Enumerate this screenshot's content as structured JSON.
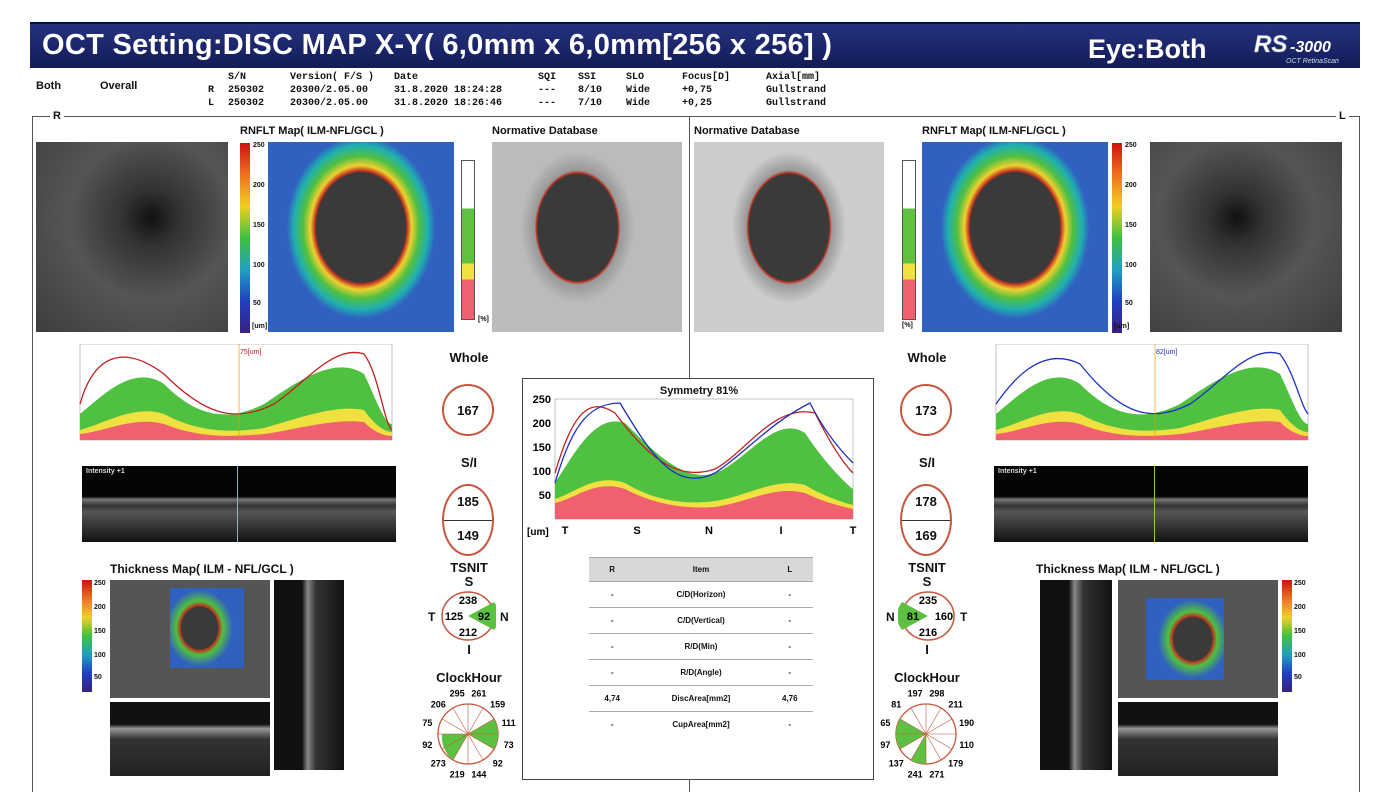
{
  "header": {
    "title": "OCT Setting:DISC MAP X-Y( 6,0mm x 6,0mm[256 x 256] )",
    "eye": "Eye:Both",
    "logo_main": "RS-3000",
    "logo_sub": "OCT RetinaScan",
    "mode_left": "Both",
    "mode_right": "Overall"
  },
  "scan_table": {
    "columns": [
      "S/N",
      "Version( F/S )",
      "Date",
      "SQI",
      "SSI",
      "SLO",
      "Focus[D]",
      "Axial[mm]"
    ],
    "rows": [
      {
        "eye": "R",
        "sn": "250302",
        "version": "20300/2.05.00",
        "date": "31.8.2020 18:24:28",
        "sqi": "---",
        "ssi": "8/10",
        "slo": "Wide",
        "focus": "+0,75",
        "axial": "Gullstrand"
      },
      {
        "eye": "L",
        "sn": "250302",
        "version": "20300/2.05.00",
        "date": "31.8.2020 18:26:46",
        "sqi": "---",
        "ssi": "7/10",
        "slo": "Wide",
        "focus": "+0,25",
        "axial": "Gullstrand"
      }
    ]
  },
  "sides": {
    "right": "R",
    "left": "L"
  },
  "labels": {
    "rnflt_map": "RNFLT Map( ILM-NFL/GCL )",
    "normative": "Normative Database",
    "thickness_map": "Thickness Map( ILM - NFL/GCL )",
    "whole": "Whole",
    "si": "S/I",
    "tsnit": "TSNIT",
    "clockhour": "ClockHour",
    "um": "[um]",
    "pct": "[%]"
  },
  "color_scale": [
    "250",
    "200",
    "150",
    "100",
    "50"
  ],
  "norm_scale": [
    "100",
    "95",
    "5",
    "1",
    "0"
  ],
  "right_eye": {
    "whole": "167",
    "s": "185",
    "i": "149",
    "tsnit": {
      "s": "238",
      "t": "125",
      "n": "92",
      "i": "212",
      "left_letter": "T",
      "right_letter": "N",
      "top_letter": "S",
      "bottom_letter": "I"
    },
    "clock": [
      "261",
      "159",
      "111",
      "73",
      "92",
      "144",
      "219",
      "273",
      "92",
      "75",
      "206",
      "295"
    ],
    "profile_label": "75[um]",
    "bscan_label": "Intensity +1"
  },
  "left_eye": {
    "whole": "173",
    "s": "178",
    "i": "169",
    "tsnit": {
      "s": "235",
      "t": "160",
      "n": "81",
      "i": "216",
      "left_letter": "N",
      "right_letter": "T",
      "top_letter": "S",
      "bottom_letter": "I"
    },
    "clock": [
      "298",
      "211",
      "190",
      "110",
      "179",
      "271",
      "241",
      "137",
      "97",
      "65",
      "81",
      "197"
    ],
    "profile_label": "82[um]",
    "bscan_label": "Intensity +1"
  },
  "symmetry": {
    "title": "Symmetry 81%",
    "yticks": [
      "250",
      "200",
      "150",
      "100",
      "50"
    ],
    "xticks": [
      "T",
      "S",
      "N",
      "I",
      "T"
    ],
    "unit": "[um]"
  },
  "items_table": {
    "head": [
      "R",
      "Item",
      "L"
    ],
    "rows": [
      [
        "-",
        "C/D(Horizon)",
        "-"
      ],
      [
        "-",
        "C/D(Vertical)",
        "-"
      ],
      [
        "-",
        "R/D(Min)",
        "-"
      ],
      [
        "-",
        "R/D(Angle)",
        "-"
      ],
      [
        "4,74",
        "DiscArea[mm2]",
        "4,76"
      ],
      [
        "-",
        "CupArea[mm2]",
        "-"
      ]
    ]
  },
  "small_profile_xticks": [
    "T",
    "S",
    "N",
    "I",
    "T"
  ],
  "small_profile_yticks": [
    "250",
    "200",
    "150",
    "100",
    "50"
  ]
}
